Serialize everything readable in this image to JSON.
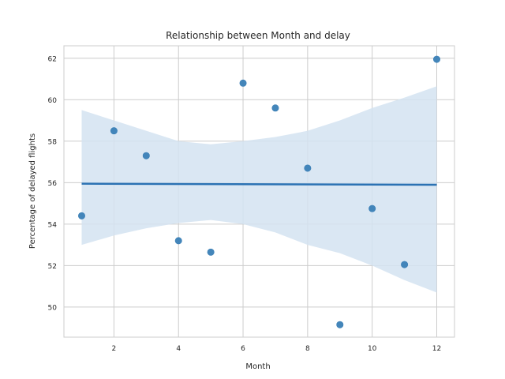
{
  "chart_data": {
    "type": "scatter",
    "title": "Relationship between Month and delay",
    "xlabel": "Month",
    "ylabel": "Percentage of delayed flights",
    "xlim": [
      0.45,
      12.55
    ],
    "ylim": [
      48.55,
      62.6
    ],
    "xticks": [
      2,
      4,
      6,
      8,
      10,
      12
    ],
    "yticks": [
      50,
      52,
      54,
      56,
      58,
      60,
      62
    ],
    "grid": true,
    "colors": {
      "points": "#3a7fb6",
      "regression_line": "#2b72b3",
      "confidence_band": "#d3e3f1",
      "grid": "#cccccc",
      "background": "#ffffff"
    },
    "points": {
      "x": [
        1,
        2,
        3,
        4,
        5,
        6,
        7,
        8,
        9,
        10,
        11,
        12
      ],
      "y": [
        54.4,
        58.5,
        57.3,
        53.2,
        52.65,
        60.8,
        59.6,
        56.7,
        49.15,
        54.75,
        52.05,
        61.95
      ]
    },
    "regression_line": {
      "x": [
        1,
        12
      ],
      "y": [
        55.95,
        55.9
      ]
    },
    "confidence_band": {
      "x": [
        1,
        2,
        3,
        4,
        5,
        6,
        7,
        8,
        9,
        10,
        11,
        12
      ],
      "upper": [
        59.5,
        59.0,
        58.5,
        58.0,
        57.85,
        58.0,
        58.2,
        58.5,
        59.0,
        59.6,
        60.1,
        60.65
      ],
      "lower": [
        53.0,
        53.45,
        53.8,
        54.05,
        54.2,
        54.0,
        53.6,
        53.0,
        52.6,
        52.0,
        51.3,
        50.7
      ]
    }
  }
}
